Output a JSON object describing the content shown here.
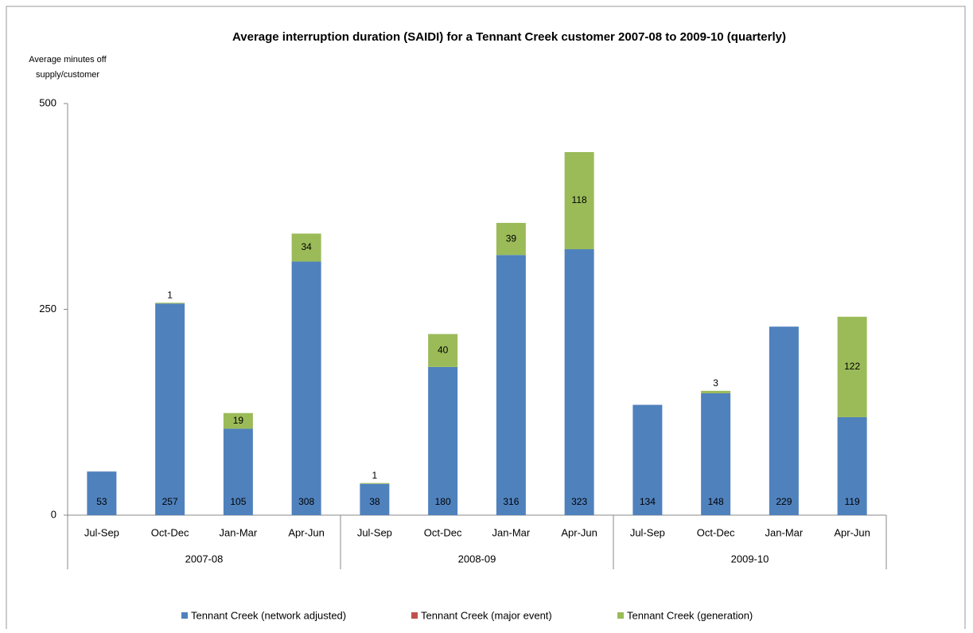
{
  "chart_data": {
    "type": "stacked_bar",
    "title": "Average interruption duration (SAIDI) for a Tennant Creek customer  2007-08 to 2009-10 (quarterly)",
    "y_label": [
      "Average minutes off",
      "supply/customer"
    ],
    "categories": [
      "Jul-Sep",
      "Oct-Dec",
      "Jan-Mar",
      "Apr-Jun",
      "Jul-Sep",
      "Oct-Dec",
      "Jan-Mar",
      "Apr-Jun",
      "Jul-Sep",
      "Oct-Dec",
      "Jan-Mar",
      "Apr-Jun"
    ],
    "groups": [
      {
        "name": "2007-08",
        "size": 4
      },
      {
        "name": "2008-09",
        "size": 4
      },
      {
        "name": "2009-10",
        "size": 4
      }
    ],
    "series": [
      {
        "name": "Tennant Creek (network adjusted)",
        "color": "#4f81bd",
        "values": [
          53,
          257,
          105,
          308,
          38,
          180,
          316,
          323,
          134,
          148,
          229,
          119
        ],
        "labels": true
      },
      {
        "name": "Tennant Creek (major event)",
        "color": "#c0504d",
        "values": [
          0,
          0,
          0,
          0,
          0,
          0,
          0,
          0,
          0,
          0,
          0,
          0
        ],
        "labels": false
      },
      {
        "name": "Tennant Creek (generation)",
        "color": "#9bbb59",
        "values": [
          null,
          1,
          19,
          34,
          1,
          40,
          39,
          118,
          null,
          3,
          null,
          122
        ],
        "labels": true
      }
    ],
    "ylim": [
      0,
      500
    ],
    "yticks": [
      0,
      250,
      500
    ],
    "grid": false,
    "legend": "bottom"
  }
}
